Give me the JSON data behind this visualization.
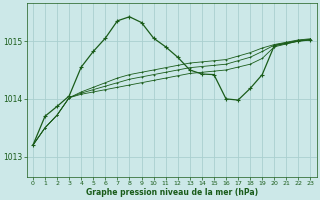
{
  "title": "Graphe pression niveau de la mer (hPa)",
  "background_color": "#cce8e8",
  "grid_color": "#aacfcf",
  "line_color": "#1a5c1a",
  "xlim": [
    -0.5,
    23.5
  ],
  "ylim": [
    1012.65,
    1015.65
  ],
  "yticks": [
    1013,
    1014,
    1015
  ],
  "xticks": [
    0,
    1,
    2,
    3,
    4,
    5,
    6,
    7,
    8,
    9,
    10,
    11,
    12,
    13,
    14,
    15,
    16,
    17,
    18,
    19,
    20,
    21,
    22,
    23
  ],
  "series_linear1": {
    "x": [
      0,
      1,
      2,
      3,
      4,
      5,
      6,
      7,
      8,
      9,
      10,
      11,
      12,
      13,
      14,
      15,
      16,
      17,
      18,
      19,
      20,
      21,
      22,
      23
    ],
    "y": [
      1013.2,
      1013.5,
      1013.72,
      1014.02,
      1014.08,
      1014.12,
      1014.16,
      1014.2,
      1014.24,
      1014.28,
      1014.32,
      1014.36,
      1014.4,
      1014.44,
      1014.46,
      1014.48,
      1014.5,
      1014.55,
      1014.6,
      1014.7,
      1014.9,
      1014.95,
      1015.0,
      1015.02
    ]
  },
  "series_linear2": {
    "x": [
      0,
      1,
      2,
      3,
      4,
      5,
      6,
      7,
      8,
      9,
      10,
      11,
      12,
      13,
      14,
      15,
      16,
      17,
      18,
      19,
      20,
      21,
      22,
      23
    ],
    "y": [
      1013.2,
      1013.5,
      1013.72,
      1014.02,
      1014.1,
      1014.16,
      1014.22,
      1014.28,
      1014.34,
      1014.38,
      1014.42,
      1014.46,
      1014.5,
      1014.54,
      1014.56,
      1014.58,
      1014.6,
      1014.66,
      1014.72,
      1014.82,
      1014.93,
      1014.97,
      1015.01,
      1015.03
    ]
  },
  "series_linear3": {
    "x": [
      0,
      1,
      2,
      3,
      4,
      5,
      6,
      7,
      8,
      9,
      10,
      11,
      12,
      13,
      14,
      15,
      16,
      17,
      18,
      19,
      20,
      21,
      22,
      23
    ],
    "y": [
      1013.2,
      1013.5,
      1013.72,
      1014.02,
      1014.12,
      1014.2,
      1014.28,
      1014.36,
      1014.42,
      1014.46,
      1014.5,
      1014.54,
      1014.58,
      1014.62,
      1014.64,
      1014.66,
      1014.68,
      1014.74,
      1014.8,
      1014.88,
      1014.94,
      1014.98,
      1015.02,
      1015.04
    ]
  },
  "series_main": {
    "x": [
      0,
      1,
      2,
      3,
      4,
      5,
      6,
      7,
      8,
      9,
      10,
      11,
      12,
      13,
      14,
      15,
      16,
      17,
      18,
      19,
      20,
      21,
      22,
      23
    ],
    "y": [
      1013.2,
      1013.7,
      1013.87,
      1014.05,
      1014.55,
      1014.82,
      1015.05,
      1015.35,
      1015.42,
      1015.32,
      1015.05,
      1014.9,
      1014.72,
      1014.5,
      1014.43,
      1014.42,
      1014.0,
      1013.98,
      1014.18,
      1014.42,
      1014.92,
      1014.96,
      1015.0,
      1015.02
    ]
  }
}
